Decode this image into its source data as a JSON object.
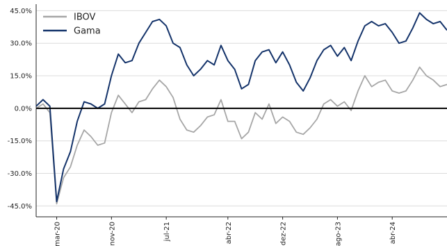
{
  "chart_data": {
    "type": "line",
    "title": "",
    "xlabel": "",
    "ylabel": "",
    "ylim": [
      -0.5,
      0.48
    ],
    "y_ticks": [
      "45.0%",
      "30.0%",
      "15.0%",
      "0.0%",
      "-15.0%",
      "-30.0%",
      "-45.0%"
    ],
    "y_tick_values": [
      0.45,
      0.3,
      0.15,
      0.0,
      -0.15,
      -0.3,
      -0.45
    ],
    "x_ticks": [
      "mar-20",
      "nov-20",
      "jul-21",
      "abr-22",
      "dez-22",
      "ago-23",
      "abr-24"
    ],
    "x_tick_values": [
      "2020-03",
      "2020-11",
      "2021-07",
      "2022-04",
      "2022-12",
      "2023-08",
      "2024-04"
    ],
    "x_range": [
      "2019-12",
      "2024-12"
    ],
    "grid": true,
    "legend_position": "top-left",
    "series": [
      {
        "name": "IBOV",
        "color": "#a6a6a6",
        "points": [
          [
            "2019-12",
            0.0
          ],
          [
            "2020-01",
            0.02
          ],
          [
            "2020-02",
            -0.02
          ],
          [
            "2020-03",
            -0.44
          ],
          [
            "2020-04",
            -0.32
          ],
          [
            "2020-05",
            -0.27
          ],
          [
            "2020-06",
            -0.17
          ],
          [
            "2020-07",
            -0.1
          ],
          [
            "2020-08",
            -0.13
          ],
          [
            "2020-09",
            -0.17
          ],
          [
            "2020-10",
            -0.16
          ],
          [
            "2020-11",
            -0.02
          ],
          [
            "2020-12",
            0.06
          ],
          [
            "2021-01",
            0.02
          ],
          [
            "2021-02",
            -0.02
          ],
          [
            "2021-03",
            0.03
          ],
          [
            "2021-04",
            0.04
          ],
          [
            "2021-05",
            0.09
          ],
          [
            "2021-06",
            0.13
          ],
          [
            "2021-07",
            0.1
          ],
          [
            "2021-08",
            0.05
          ],
          [
            "2021-09",
            -0.05
          ],
          [
            "2021-10",
            -0.1
          ],
          [
            "2021-11",
            -0.11
          ],
          [
            "2021-12",
            -0.08
          ],
          [
            "2022-01",
            -0.04
          ],
          [
            "2022-02",
            -0.03
          ],
          [
            "2022-03",
            0.04
          ],
          [
            "2022-04",
            -0.06
          ],
          [
            "2022-05",
            -0.06
          ],
          [
            "2022-06",
            -0.14
          ],
          [
            "2022-07",
            -0.11
          ],
          [
            "2022-08",
            -0.02
          ],
          [
            "2022-09",
            -0.05
          ],
          [
            "2022-10",
            0.02
          ],
          [
            "2022-11",
            -0.07
          ],
          [
            "2022-12",
            -0.04
          ],
          [
            "2023-01",
            -0.06
          ],
          [
            "2023-02",
            -0.11
          ],
          [
            "2023-03",
            -0.12
          ],
          [
            "2023-04",
            -0.09
          ],
          [
            "2023-05",
            -0.05
          ],
          [
            "2023-06",
            0.02
          ],
          [
            "2023-07",
            0.04
          ],
          [
            "2023-08",
            0.01
          ],
          [
            "2023-09",
            0.03
          ],
          [
            "2023-10",
            -0.01
          ],
          [
            "2023-11",
            0.08
          ],
          [
            "2023-12",
            0.15
          ],
          [
            "2024-01",
            0.1
          ],
          [
            "2024-02",
            0.12
          ],
          [
            "2024-03",
            0.13
          ],
          [
            "2024-04",
            0.08
          ],
          [
            "2024-05",
            0.07
          ],
          [
            "2024-06",
            0.08
          ],
          [
            "2024-07",
            0.13
          ],
          [
            "2024-08",
            0.19
          ],
          [
            "2024-09",
            0.15
          ],
          [
            "2024-10",
            0.13
          ],
          [
            "2024-11",
            0.1
          ],
          [
            "2024-12",
            0.11
          ]
        ]
      },
      {
        "name": "Gama",
        "color": "#14336a",
        "points": [
          [
            "2019-12",
            0.01
          ],
          [
            "2020-01",
            0.04
          ],
          [
            "2020-02",
            0.01
          ],
          [
            "2020-03",
            -0.43
          ],
          [
            "2020-04",
            -0.28
          ],
          [
            "2020-05",
            -0.2
          ],
          [
            "2020-06",
            -0.06
          ],
          [
            "2020-07",
            0.03
          ],
          [
            "2020-08",
            0.02
          ],
          [
            "2020-09",
            0.0
          ],
          [
            "2020-10",
            0.02
          ],
          [
            "2020-11",
            0.15
          ],
          [
            "2020-12",
            0.25
          ],
          [
            "2021-01",
            0.21
          ],
          [
            "2021-02",
            0.22
          ],
          [
            "2021-03",
            0.3
          ],
          [
            "2021-04",
            0.35
          ],
          [
            "2021-05",
            0.4
          ],
          [
            "2021-06",
            0.41
          ],
          [
            "2021-07",
            0.38
          ],
          [
            "2021-08",
            0.3
          ],
          [
            "2021-09",
            0.28
          ],
          [
            "2021-10",
            0.2
          ],
          [
            "2021-11",
            0.15
          ],
          [
            "2021-12",
            0.18
          ],
          [
            "2022-01",
            0.22
          ],
          [
            "2022-02",
            0.2
          ],
          [
            "2022-03",
            0.29
          ],
          [
            "2022-04",
            0.22
          ],
          [
            "2022-05",
            0.18
          ],
          [
            "2022-06",
            0.09
          ],
          [
            "2022-07",
            0.11
          ],
          [
            "2022-08",
            0.22
          ],
          [
            "2022-09",
            0.26
          ],
          [
            "2022-10",
            0.27
          ],
          [
            "2022-11",
            0.21
          ],
          [
            "2022-12",
            0.26
          ],
          [
            "2023-01",
            0.2
          ],
          [
            "2023-02",
            0.12
          ],
          [
            "2023-03",
            0.08
          ],
          [
            "2023-04",
            0.14
          ],
          [
            "2023-05",
            0.22
          ],
          [
            "2023-06",
            0.27
          ],
          [
            "2023-07",
            0.29
          ],
          [
            "2023-08",
            0.24
          ],
          [
            "2023-09",
            0.28
          ],
          [
            "2023-10",
            0.22
          ],
          [
            "2023-11",
            0.31
          ],
          [
            "2023-12",
            0.38
          ],
          [
            "2024-01",
            0.4
          ],
          [
            "2024-02",
            0.38
          ],
          [
            "2024-03",
            0.39
          ],
          [
            "2024-04",
            0.35
          ],
          [
            "2024-05",
            0.3
          ],
          [
            "2024-06",
            0.31
          ],
          [
            "2024-07",
            0.37
          ],
          [
            "2024-08",
            0.44
          ],
          [
            "2024-09",
            0.41
          ],
          [
            "2024-10",
            0.39
          ],
          [
            "2024-11",
            0.4
          ],
          [
            "2024-12",
            0.36
          ]
        ]
      }
    ]
  }
}
